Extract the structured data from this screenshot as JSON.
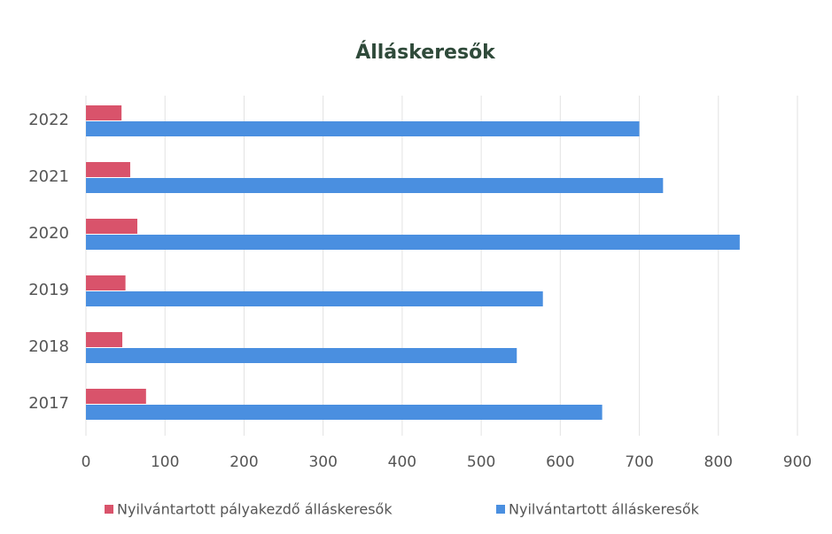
{
  "chart_data": {
    "type": "bar",
    "orientation": "horizontal",
    "title": "Álláskeresők",
    "categories": [
      "2017",
      "2018",
      "2019",
      "2020",
      "2021",
      "2022"
    ],
    "series": [
      {
        "name": "Nyilvántartott pályakezdő álláskeresők",
        "color": "#d9536b",
        "values": [
          76,
          46,
          50,
          65,
          56,
          45
        ]
      },
      {
        "name": "Nyilvántartott álláskeresők",
        "color": "#4a8fe0",
        "values": [
          653,
          545,
          578,
          827,
          730,
          700
        ]
      }
    ],
    "xlim": [
      0,
      900
    ],
    "xticks": [
      0,
      100,
      200,
      300,
      400,
      500,
      600,
      700,
      800,
      900
    ],
    "grid": true,
    "legend": "bottom"
  }
}
